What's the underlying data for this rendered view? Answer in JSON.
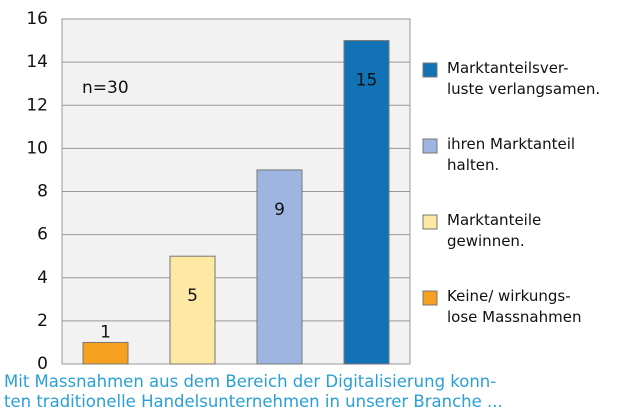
{
  "chart_data": {
    "type": "bar",
    "categories": [
      "Keine/ wirkungs-\nlose Massnahmen",
      "Marktanteile\ngewinnen.",
      "ihren Marktanteil\nhalten.",
      "Marktanteilsver-\nluste verlangsamen."
    ],
    "values": [
      1,
      5,
      9,
      15
    ],
    "colors": [
      "#f5a01f",
      "#fde9a3",
      "#9db5e0",
      "#1272b5"
    ],
    "label_colors": [
      "#111",
      "#111",
      "#111",
      "#fff"
    ],
    "ylim": [
      0,
      16
    ],
    "yticks": [
      0,
      2,
      4,
      6,
      8,
      10,
      12,
      14,
      16
    ],
    "grid": true,
    "annotation": "n=30",
    "caption": "Mit Massnahmen aus dem Bereich der Digitalisierung konn-\nten traditionelle Handelsunternehmen in unserer Branche ...",
    "legend": "right"
  }
}
